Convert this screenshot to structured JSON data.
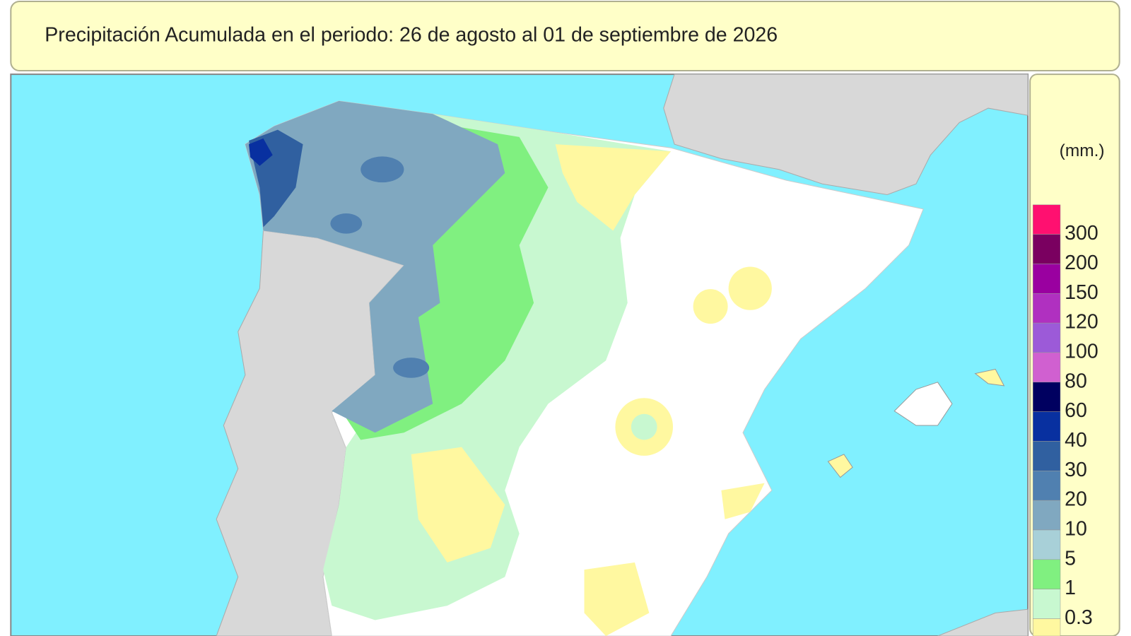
{
  "header": {
    "title": "Precipitación Acumulada en el periodo: 26  de agosto  al 01  de septiembre de  2026"
  },
  "legend": {
    "unit": "(mm.)",
    "swatches": [
      "#ff1070",
      "#7a0060",
      "#9a00a0",
      "#b030c0",
      "#9c5ad8",
      "#d060d0",
      "#000060",
      "#0830a0",
      "#3060a0",
      "#5080b0",
      "#80a8c0",
      "#a8d0d8",
      "#80f080",
      "#c8f8d0",
      "#fff8a0",
      "#ffffff"
    ],
    "labels": [
      "300",
      "200",
      "150",
      "120",
      "100",
      "80",
      "60",
      "40",
      "30",
      "20",
      "10",
      "5",
      "1",
      "0.3"
    ]
  }
}
